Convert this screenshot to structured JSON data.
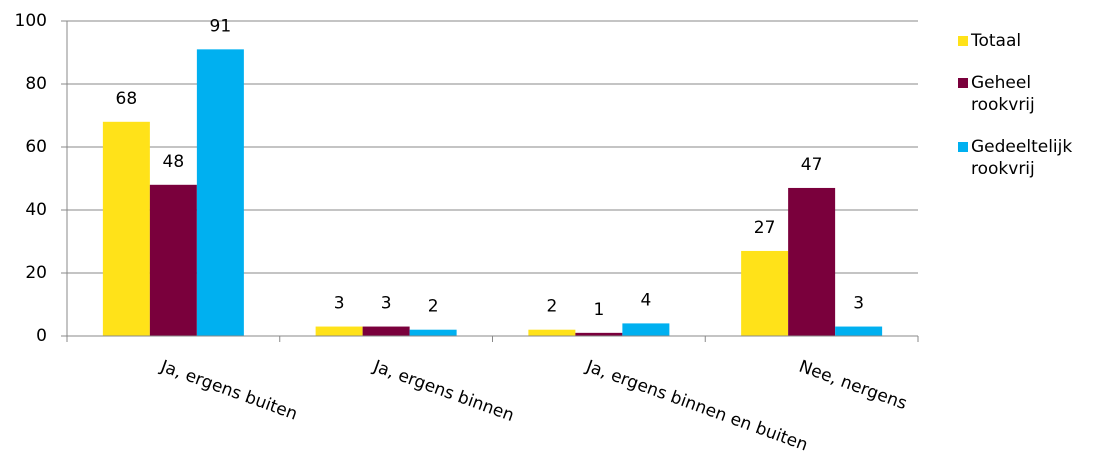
{
  "chart_data": {
    "type": "bar",
    "categories": [
      "Ja, ergens buiten",
      "Ja, ergens binnen",
      "Ja, ergens binnen en buiten",
      "Nee, nergens"
    ],
    "series": [
      {
        "name": "Totaal",
        "color": "#ffe219",
        "values": [
          68,
          3,
          2,
          27
        ]
      },
      {
        "name": "Geheel rookvrij",
        "color": "#7a003c",
        "values": [
          48,
          3,
          1,
          47
        ]
      },
      {
        "name": "Gedeeltelijk rookvrij",
        "color": "#00b0f0",
        "values": [
          91,
          2,
          4,
          3
        ]
      }
    ],
    "ylim": [
      0,
      100
    ],
    "yticks": [
      0,
      20,
      40,
      60,
      80,
      100
    ],
    "grid": true,
    "legend": "right"
  }
}
